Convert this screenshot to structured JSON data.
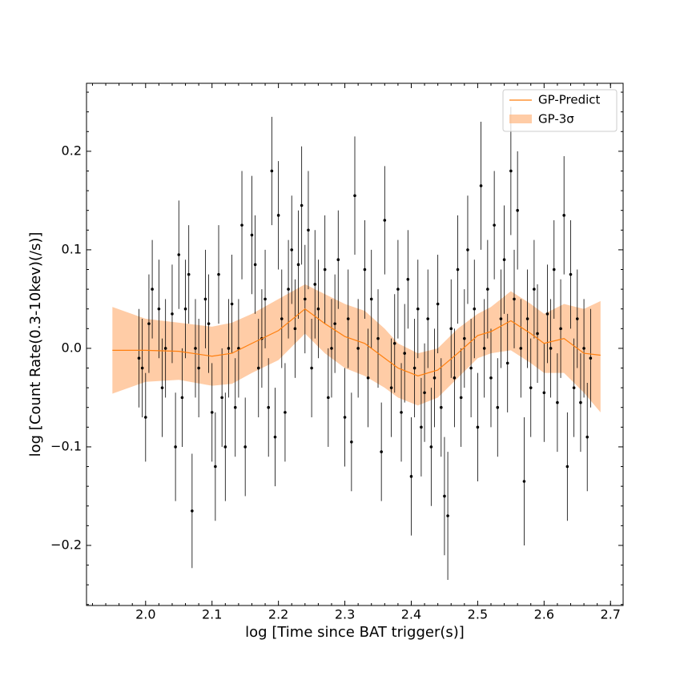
{
  "chart_data": {
    "type": "errorbar",
    "xlabel": "log [Time since BAT trigger(s)]",
    "ylabel": "log [Count Rate(0.3-10kev)(/s)]",
    "xlim": [
      1.911,
      2.719
    ],
    "ylim": [
      -0.261,
      0.269
    ],
    "xticks": [
      {
        "value": 2.0,
        "label": "2.0"
      },
      {
        "value": 2.1,
        "label": "2.1"
      },
      {
        "value": 2.2,
        "label": "2.2"
      },
      {
        "value": 2.3,
        "label": "2.3"
      },
      {
        "value": 2.4,
        "label": "2.4"
      },
      {
        "value": 2.5,
        "label": "2.5"
      },
      {
        "value": 2.6,
        "label": "2.6"
      },
      {
        "value": 2.7,
        "label": "2.7"
      }
    ],
    "yticks": [
      {
        "value": -0.2,
        "label": "−0.2"
      },
      {
        "value": -0.1,
        "label": "−0.1"
      },
      {
        "value": 0.0,
        "label": "0.0"
      },
      {
        "value": 0.1,
        "label": "0.1"
      },
      {
        "value": 0.2,
        "label": "0.2"
      }
    ],
    "xminorticks": [
      1.92,
      1.94,
      1.96,
      1.98,
      2.02,
      2.04,
      2.06,
      2.08,
      2.12,
      2.14,
      2.16,
      2.18,
      2.22,
      2.24,
      2.26,
      2.28,
      2.32,
      2.34,
      2.36,
      2.38,
      2.42,
      2.44,
      2.46,
      2.48,
      2.52,
      2.54,
      2.56,
      2.58,
      2.62,
      2.64,
      2.66,
      2.68,
      2.7,
      2.72
    ],
    "yminorticks": [
      -0.26,
      -0.24,
      -0.22,
      -0.18,
      -0.16,
      -0.14,
      -0.12,
      -0.08,
      -0.06,
      -0.04,
      -0.02,
      0.02,
      0.04,
      0.06,
      0.08,
      0.12,
      0.14,
      0.16,
      0.18,
      0.22,
      0.24,
      0.26
    ],
    "legend": "upper right",
    "points": {
      "color": "#000000",
      "x": [
        1.99,
        1.995,
        2.0,
        2.005,
        2.01,
        2.02,
        2.025,
        2.03,
        2.04,
        2.045,
        2.05,
        2.055,
        2.06,
        2.065,
        2.07,
        2.075,
        2.08,
        2.09,
        2.095,
        2.1,
        2.105,
        2.11,
        2.115,
        2.12,
        2.125,
        2.13,
        2.135,
        2.14,
        2.145,
        2.15,
        2.16,
        2.165,
        2.17,
        2.175,
        2.18,
        2.185,
        2.19,
        2.195,
        2.2,
        2.205,
        2.21,
        2.215,
        2.22,
        2.225,
        2.23,
        2.235,
        2.24,
        2.245,
        2.25,
        2.255,
        2.26,
        2.27,
        2.275,
        2.28,
        2.285,
        2.29,
        2.3,
        2.305,
        2.31,
        2.315,
        2.32,
        2.33,
        2.335,
        2.34,
        2.35,
        2.355,
        2.36,
        2.37,
        2.375,
        2.38,
        2.385,
        2.39,
        2.395,
        2.4,
        2.405,
        2.41,
        2.415,
        2.42,
        2.425,
        2.43,
        2.435,
        2.44,
        2.445,
        2.45,
        2.455,
        2.46,
        2.465,
        2.47,
        2.475,
        2.48,
        2.485,
        2.49,
        2.495,
        2.5,
        2.505,
        2.51,
        2.515,
        2.52,
        2.525,
        2.53,
        2.535,
        2.54,
        2.545,
        2.55,
        2.555,
        2.56,
        2.565,
        2.57,
        2.575,
        2.58,
        2.585,
        2.59,
        2.6,
        2.605,
        2.61,
        2.615,
        2.62,
        2.625,
        2.63,
        2.635,
        2.64,
        2.645,
        2.65,
        2.655,
        2.66,
        2.665,
        2.67
      ],
      "y": [
        -0.01,
        -0.02,
        -0.07,
        0.025,
        0.06,
        0.04,
        -0.04,
        0.0,
        0.035,
        -0.1,
        0.095,
        -0.05,
        0.04,
        0.075,
        -0.165,
        0.0,
        -0.02,
        0.05,
        0.025,
        -0.065,
        -0.12,
        0.075,
        -0.05,
        -0.1,
        0.0,
        0.045,
        -0.06,
        0.0,
        0.125,
        -0.1,
        0.115,
        0.085,
        -0.02,
        0.01,
        0.05,
        -0.06,
        0.18,
        -0.09,
        0.135,
        0.03,
        -0.065,
        0.06,
        0.1,
        0.02,
        0.085,
        0.145,
        0.05,
        0.12,
        -0.02,
        0.065,
        0.04,
        0.08,
        -0.05,
        0.0,
        0.025,
        0.09,
        -0.07,
        0.03,
        -0.095,
        0.155,
        0.0,
        0.08,
        -0.03,
        0.05,
        0.01,
        -0.105,
        0.13,
        -0.04,
        0.005,
        0.06,
        -0.065,
        -0.005,
        0.07,
        -0.13,
        -0.02,
        0.04,
        -0.08,
        -0.045,
        0.03,
        -0.1,
        -0.03,
        0.045,
        -0.06,
        -0.15,
        -0.17,
        0.02,
        -0.03,
        0.08,
        -0.05,
        0.01,
        0.1,
        -0.02,
        0.04,
        -0.08,
        0.165,
        0.0,
        0.06,
        -0.03,
        0.125,
        -0.06,
        0.03,
        0.09,
        -0.015,
        0.18,
        0.05,
        0.14,
        0.0,
        -0.135,
        0.03,
        -0.04,
        0.06,
        0.015,
        -0.045,
        0.035,
        0.0,
        0.08,
        -0.055,
        0.02,
        0.135,
        -0.12,
        0.075,
        -0.04,
        0.03,
        -0.055,
        0.0,
        -0.09,
        -0.01
      ],
      "yerr": [
        0.05,
        0.05,
        0.045,
        0.05,
        0.05,
        0.05,
        0.05,
        0.05,
        0.05,
        0.055,
        0.055,
        0.05,
        0.05,
        0.05,
        0.058,
        0.05,
        0.05,
        0.05,
        0.05,
        0.05,
        0.055,
        0.05,
        0.05,
        0.055,
        0.05,
        0.05,
        0.05,
        0.05,
        0.055,
        0.05,
        0.06,
        0.05,
        0.05,
        0.05,
        0.05,
        0.05,
        0.055,
        0.05,
        0.055,
        0.05,
        0.05,
        0.05,
        0.055,
        0.05,
        0.055,
        0.06,
        0.055,
        0.06,
        0.05,
        0.055,
        0.05,
        0.055,
        0.05,
        0.05,
        0.05,
        0.05,
        0.05,
        0.05,
        0.05,
        0.06,
        0.05,
        0.05,
        0.05,
        0.05,
        0.05,
        0.05,
        0.055,
        0.05,
        0.05,
        0.05,
        0.05,
        0.05,
        0.05,
        0.06,
        0.05,
        0.05,
        0.05,
        0.05,
        0.05,
        0.06,
        0.05,
        0.05,
        0.05,
        0.06,
        0.065,
        0.05,
        0.05,
        0.055,
        0.05,
        0.05,
        0.055,
        0.05,
        0.05,
        0.055,
        0.065,
        0.05,
        0.05,
        0.05,
        0.055,
        0.05,
        0.05,
        0.055,
        0.05,
        0.065,
        0.05,
        0.06,
        0.05,
        0.065,
        0.05,
        0.05,
        0.05,
        0.05,
        0.05,
        0.05,
        0.05,
        0.05,
        0.05,
        0.05,
        0.06,
        0.055,
        0.055,
        0.05,
        0.05,
        0.05,
        0.05,
        0.055,
        0.05
      ]
    },
    "gp": {
      "name": "GP-Predict",
      "color": "#ff7f0e",
      "x": [
        1.95,
        2.0,
        2.05,
        2.1,
        2.13,
        2.16,
        2.2,
        2.24,
        2.27,
        2.3,
        2.33,
        2.36,
        2.38,
        2.41,
        2.44,
        2.47,
        2.5,
        2.52,
        2.55,
        2.58,
        2.6,
        2.63,
        2.66,
        2.685
      ],
      "values": [
        -0.002,
        -0.002,
        -0.003,
        -0.008,
        -0.005,
        0.005,
        0.018,
        0.04,
        0.025,
        0.012,
        0.005,
        -0.01,
        -0.02,
        -0.028,
        -0.022,
        -0.005,
        0.013,
        0.017,
        0.028,
        0.015,
        0.005,
        0.01,
        -0.005,
        -0.007
      ]
    },
    "band": {
      "name": "GP-3σ",
      "color": "#ffbb88",
      "upper": [
        0.042,
        0.03,
        0.026,
        0.022,
        0.026,
        0.035,
        0.05,
        0.065,
        0.055,
        0.045,
        0.038,
        0.02,
        0.005,
        -0.005,
        0.0,
        0.02,
        0.035,
        0.042,
        0.058,
        0.045,
        0.035,
        0.045,
        0.04,
        0.048
      ],
      "lower": [
        -0.046,
        -0.034,
        -0.032,
        -0.038,
        -0.036,
        -0.025,
        -0.012,
        0.015,
        -0.005,
        -0.02,
        -0.028,
        -0.04,
        -0.05,
        -0.058,
        -0.05,
        -0.03,
        -0.01,
        -0.005,
        -0.002,
        -0.015,
        -0.025,
        -0.025,
        -0.045,
        -0.065
      ]
    }
  }
}
